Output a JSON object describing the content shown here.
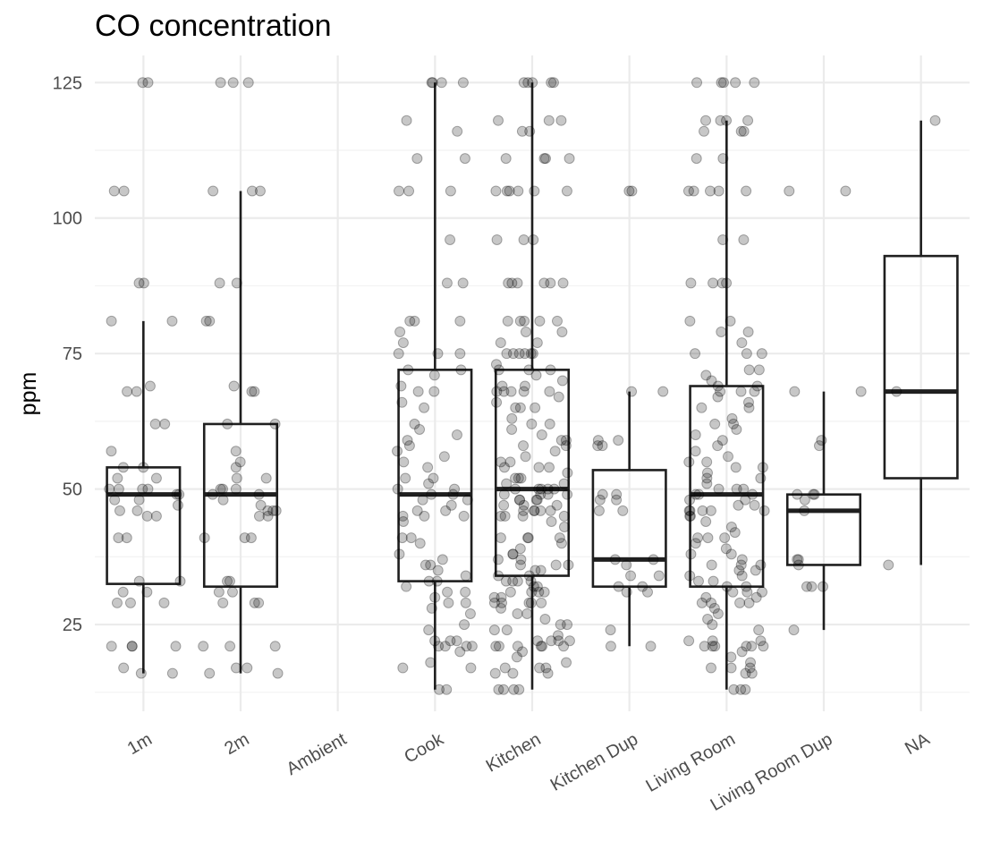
{
  "chart_data": {
    "type": "boxplot",
    "title": "CO concentration",
    "xlabel": "",
    "ylabel": "ppm",
    "ylim": [
      9,
      130
    ],
    "yticks": [
      25,
      50,
      75,
      100,
      125
    ],
    "grid": true,
    "point_alpha": 0.22,
    "categories": [
      "1m",
      "2m",
      "Ambient",
      "Cook",
      "Kitchen",
      "Kitchen Dup",
      "Living Room",
      "Living Room Dup",
      "NA"
    ],
    "boxes": [
      {
        "category": "1m",
        "whisker_low": 16,
        "q1": 32.5,
        "median": 49,
        "q3": 54,
        "whisker_high": 81,
        "points": [
          125,
          125,
          105,
          105,
          88,
          88,
          81,
          81,
          69,
          68,
          68,
          62,
          62,
          57,
          54,
          54,
          52,
          52,
          50,
          50,
          50,
          50,
          49,
          49,
          48,
          48,
          47,
          46,
          46,
          45,
          45,
          41,
          41,
          33,
          33,
          31,
          31,
          29,
          29,
          29,
          21,
          21,
          21,
          21,
          17,
          16,
          16
        ]
      },
      {
        "category": "2m",
        "whisker_low": 16,
        "q1": 32,
        "median": 49,
        "q3": 62,
        "whisker_high": 105,
        "points": [
          125,
          125,
          125,
          105,
          105,
          105,
          88,
          88,
          81,
          81,
          69,
          68,
          68,
          62,
          62,
          57,
          55,
          54,
          52,
          52,
          50,
          50,
          50,
          49,
          49,
          48,
          47,
          46,
          46,
          46,
          45,
          45,
          41,
          41,
          41,
          33,
          33,
          31,
          31,
          29,
          29,
          29,
          21,
          21,
          21,
          17,
          17,
          16,
          16
        ]
      },
      {
        "category": "Ambient",
        "whisker_low": null,
        "q1": null,
        "median": null,
        "q3": null,
        "whisker_high": null,
        "points": []
      },
      {
        "category": "Cook",
        "whisker_low": 13,
        "q1": 33,
        "median": 49,
        "q3": 72,
        "whisker_high": 125,
        "points": [
          125,
          125,
          125,
          125,
          118,
          116,
          111,
          111,
          105,
          105,
          105,
          96,
          88,
          88,
          81,
          81,
          81,
          79,
          77,
          75,
          75,
          75,
          72,
          72,
          71,
          69,
          68,
          68,
          66,
          65,
          62,
          61,
          60,
          59,
          58,
          57,
          56,
          55,
          54,
          52,
          52,
          51,
          50,
          50,
          49,
          49,
          48,
          48,
          47,
          46,
          46,
          45,
          45,
          45,
          44,
          41,
          41,
          40,
          38,
          37,
          36,
          36,
          35,
          34,
          33,
          33,
          32,
          31,
          31,
          30,
          29,
          29,
          28,
          27,
          25,
          24,
          22,
          22,
          22,
          21,
          21,
          21,
          21,
          20,
          18,
          17,
          17,
          13,
          13
        ]
      },
      {
        "category": "Kitchen",
        "whisker_low": 13,
        "q1": 34,
        "median": 50,
        "q3": 72,
        "whisker_high": 125,
        "points": [
          125,
          125,
          125,
          125,
          125,
          118,
          118,
          118,
          116,
          116,
          111,
          111,
          111,
          111,
          105,
          105,
          105,
          105,
          105,
          105,
          96,
          96,
          96,
          88,
          88,
          88,
          88,
          88,
          88,
          81,
          81,
          81,
          81,
          81,
          79,
          79,
          77,
          77,
          75,
          75,
          75,
          75,
          75,
          75,
          73,
          72,
          72,
          72,
          71,
          70,
          69,
          69,
          68,
          68,
          68,
          68,
          68,
          67,
          66,
          65,
          65,
          65,
          63,
          62,
          62,
          61,
          60,
          59,
          59,
          58,
          58,
          57,
          56,
          55,
          55,
          54,
          54,
          54,
          53,
          52,
          52,
          52,
          51,
          51,
          50,
          50,
          50,
          50,
          50,
          49,
          49,
          49,
          49,
          48,
          48,
          48,
          48,
          47,
          47,
          47,
          46,
          46,
          46,
          46,
          46,
          45,
          45,
          45,
          45,
          44,
          43,
          41,
          41,
          41,
          41,
          40,
          39,
          38,
          38,
          37,
          37,
          36,
          36,
          36,
          35,
          35,
          34,
          34,
          33,
          33,
          33,
          33,
          32,
          32,
          31,
          31,
          31,
          31,
          30,
          30,
          29,
          29,
          29,
          29,
          29,
          28,
          27,
          27,
          26,
          25,
          25,
          24,
          24,
          23,
          22,
          22,
          22,
          22,
          21,
          21,
          21,
          21,
          21,
          21,
          20,
          19,
          18,
          17,
          17,
          17,
          16,
          16,
          16,
          13,
          13,
          13,
          13
        ]
      },
      {
        "category": "Kitchen Dup",
        "whisker_low": 21,
        "q1": 32,
        "median": 37,
        "q3": 53.5,
        "whisker_high": 68,
        "points": [
          105,
          105,
          68,
          68,
          59,
          59,
          58,
          58,
          49,
          49,
          48,
          48,
          46,
          46,
          37,
          37,
          36,
          34,
          34,
          32,
          32,
          31,
          31,
          24,
          21,
          21
        ]
      },
      {
        "category": "Living Room",
        "whisker_low": 13,
        "q1": 32,
        "median": 49,
        "q3": 69,
        "whisker_high": 118,
        "points": [
          125,
          125,
          125,
          125,
          125,
          118,
          118,
          118,
          118,
          116,
          116,
          116,
          111,
          111,
          105,
          105,
          105,
          105,
          105,
          96,
          96,
          88,
          88,
          88,
          88,
          81,
          81,
          79,
          79,
          77,
          75,
          75,
          75,
          72,
          72,
          71,
          70,
          69,
          69,
          68,
          68,
          68,
          67,
          66,
          65,
          65,
          63,
          62,
          62,
          61,
          60,
          59,
          58,
          57,
          56,
          55,
          55,
          54,
          54,
          53,
          52,
          52,
          51,
          50,
          50,
          50,
          49,
          49,
          49,
          48,
          48,
          47,
          47,
          46,
          46,
          46,
          46,
          46,
          45,
          45,
          44,
          43,
          42,
          41,
          41,
          41,
          40,
          39,
          38,
          38,
          37,
          36,
          36,
          36,
          35,
          35,
          34,
          34,
          33,
          33,
          32,
          32,
          31,
          31,
          31,
          30,
          30,
          29,
          29,
          29,
          29,
          28,
          27,
          26,
          25,
          24,
          22,
          22,
          22,
          21,
          21,
          21,
          21,
          21,
          21,
          20,
          19,
          18,
          17,
          17,
          17,
          16,
          16,
          13,
          13,
          13
        ]
      },
      {
        "category": "Living Room Dup",
        "whisker_low": 24,
        "q1": 36,
        "median": 46,
        "q3": 49,
        "whisker_high": 68,
        "points": [
          105,
          105,
          68,
          68,
          59,
          58,
          49,
          49,
          49,
          48,
          46,
          37,
          37,
          36,
          32,
          32,
          32,
          24
        ]
      },
      {
        "category": "NA",
        "whisker_low": 36,
        "q1": 52,
        "median": 68,
        "q3": 93,
        "whisker_high": 118,
        "points": [
          118,
          68,
          36
        ]
      }
    ]
  }
}
